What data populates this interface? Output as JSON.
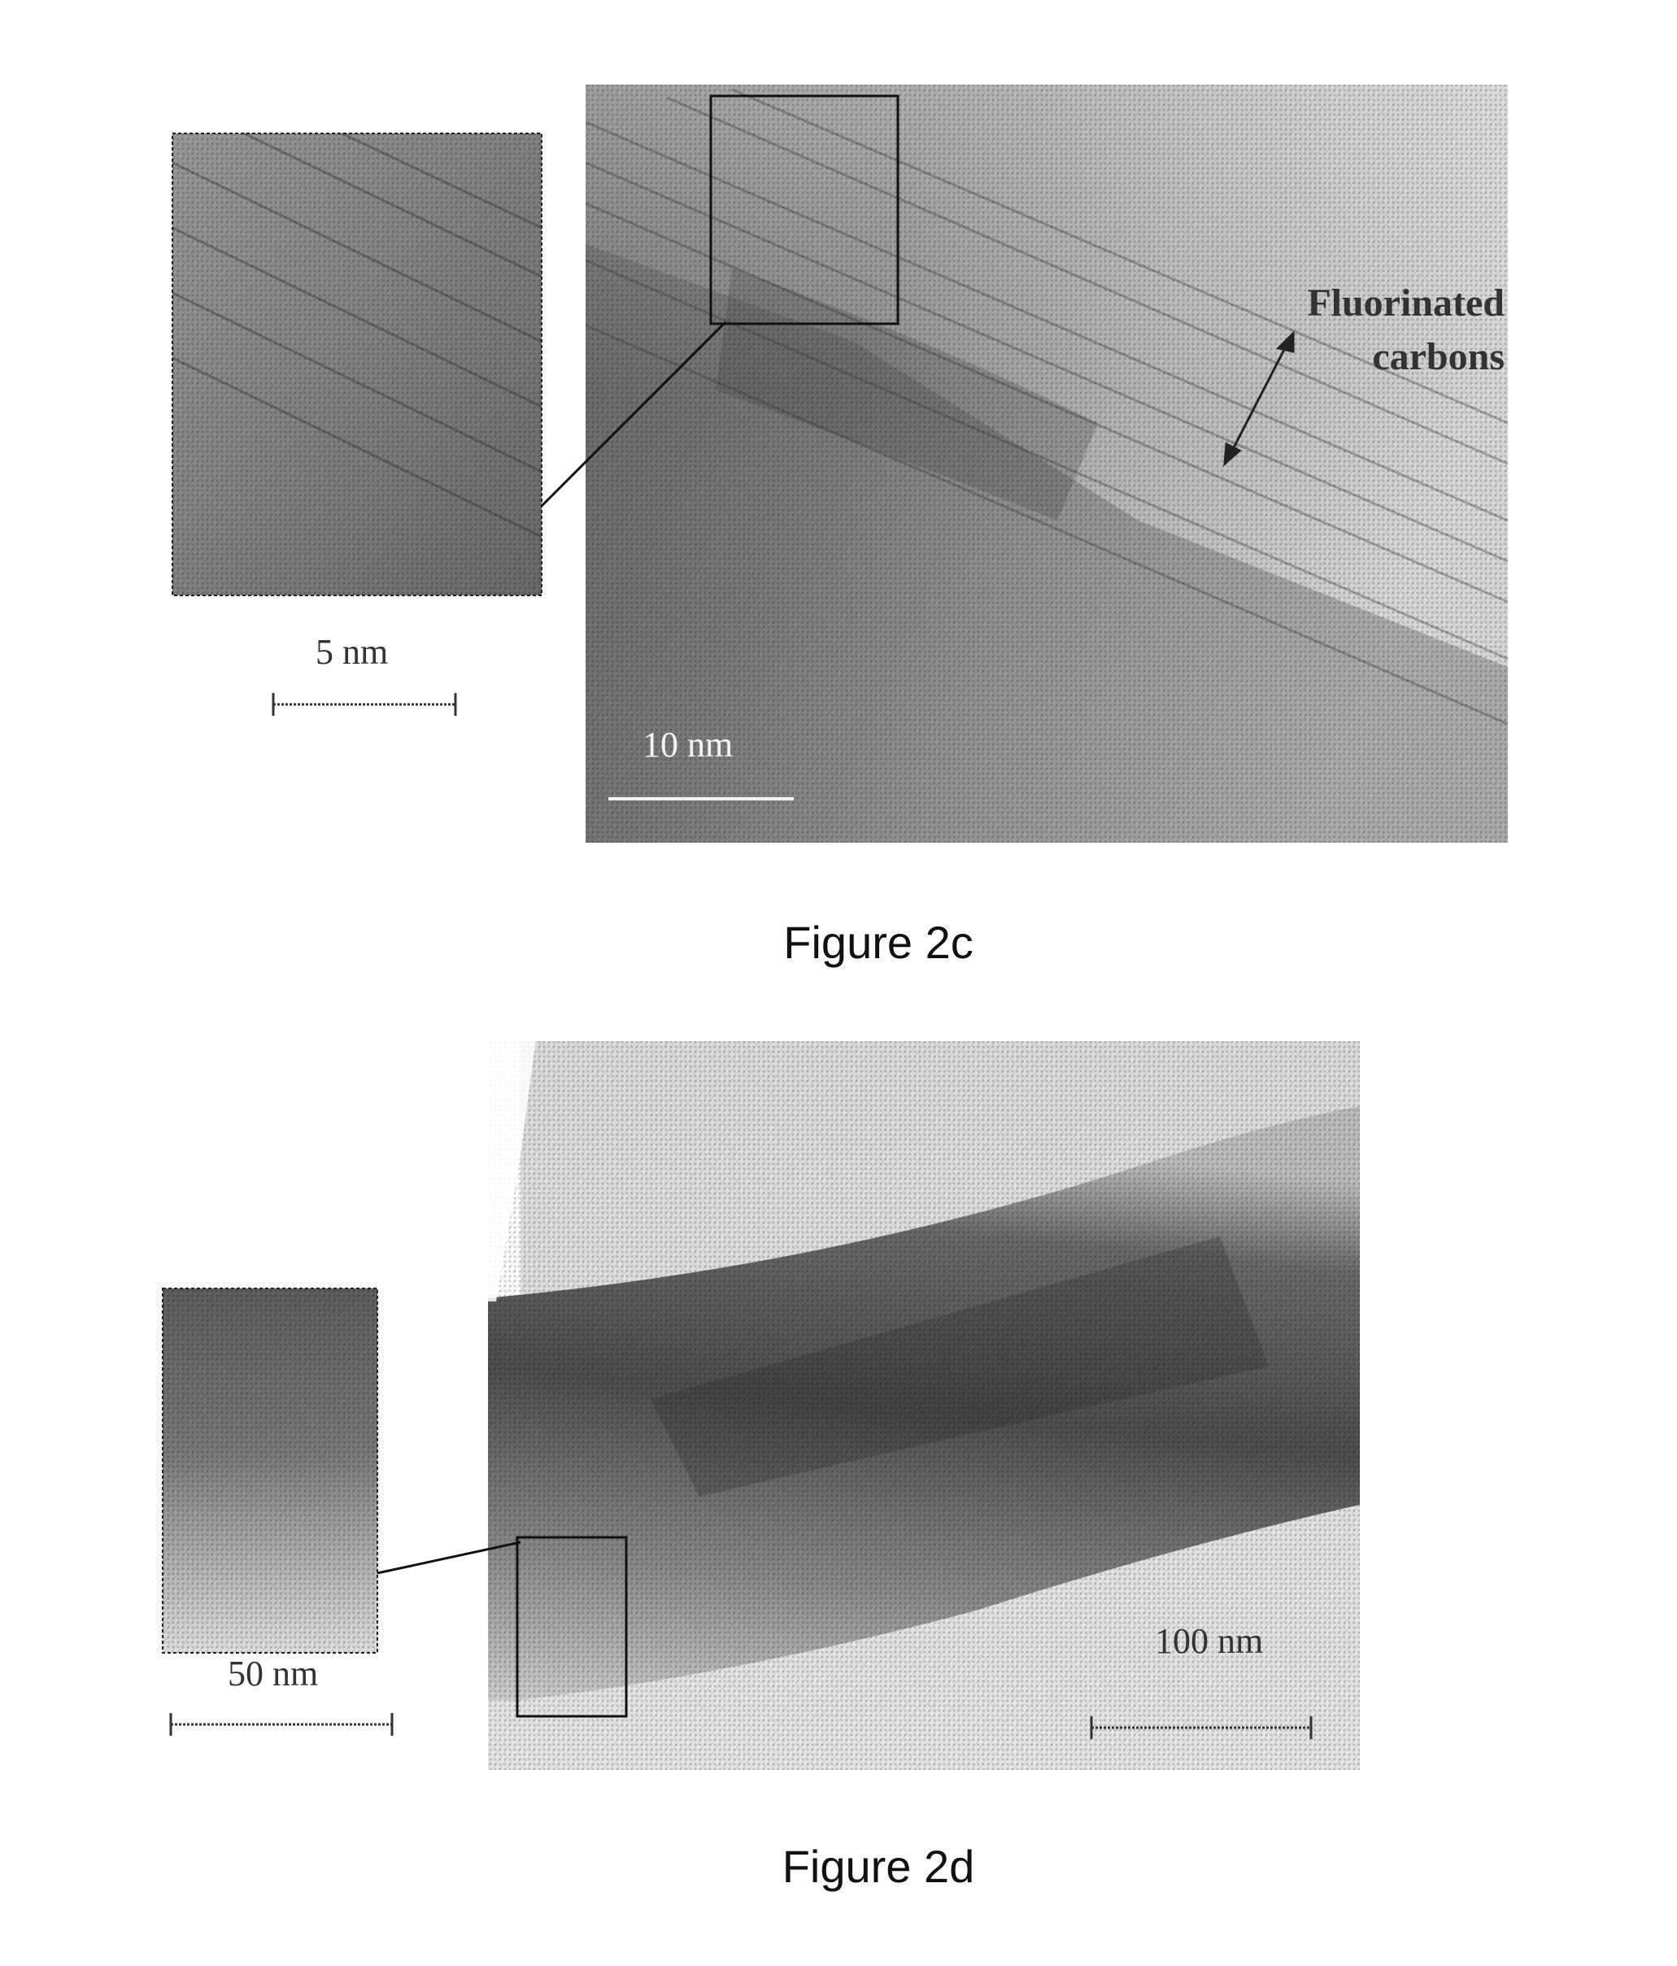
{
  "figure_2c": {
    "caption": "Figure 2c",
    "inset_scale_label": "5 nm",
    "main_scale_label": "10 nm",
    "annotation_line1": "Fluorinated",
    "annotation_line2": "carbons"
  },
  "figure_2d": {
    "caption": "Figure 2d",
    "inset_scale_label": "50 nm",
    "main_scale_label": "100 nm"
  }
}
